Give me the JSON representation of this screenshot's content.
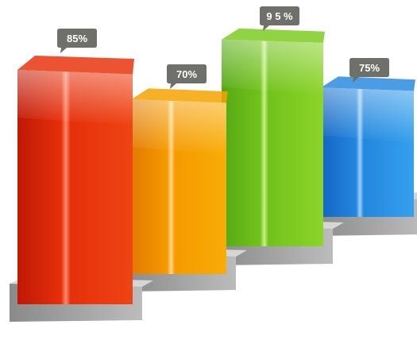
{
  "chart_data": {
    "type": "bar",
    "values": [
      85,
      70,
      95,
      75
    ],
    "labels": [
      "85%",
      "70%",
      "9 5 %",
      "75%"
    ],
    "colors": [
      "#e8350f",
      "#f5a300",
      "#7ccd22",
      "#2a8be0"
    ],
    "title": "",
    "xlabel": "",
    "ylabel": "",
    "grid": false
  }
}
